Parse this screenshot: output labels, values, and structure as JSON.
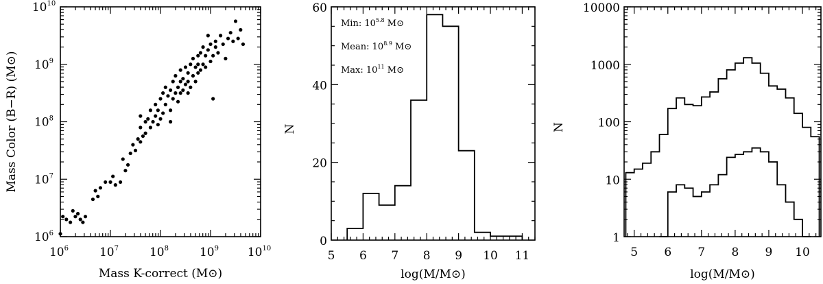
{
  "chart_data": [
    {
      "type": "scatter",
      "xlabel": "Mass K-correct (M⊙)",
      "ylabel": "Mass Color (B−R) (M⊙)",
      "xscale": "log",
      "yscale": "log",
      "xlim": [
        1000000.0,
        10000000000.0
      ],
      "ylim": [
        1000000.0,
        10000000000.0
      ],
      "x_ticks": [
        {
          "value": 1000000.0,
          "base": "10",
          "exp": "6"
        },
        {
          "value": 10000000.0,
          "base": "10",
          "exp": "7"
        },
        {
          "value": 100000000.0,
          "base": "10",
          "exp": "8"
        },
        {
          "value": 1000000000.0,
          "base": "10",
          "exp": "9"
        },
        {
          "value": 10000000000.0,
          "base": "10",
          "exp": "10"
        }
      ],
      "y_ticks": [
        {
          "value": 1000000.0,
          "base": "10",
          "exp": "6"
        },
        {
          "value": 10000000.0,
          "base": "10",
          "exp": "7"
        },
        {
          "value": 100000000.0,
          "base": "10",
          "exp": "8"
        },
        {
          "value": 1000000000.0,
          "base": "10",
          "exp": "9"
        },
        {
          "value": 10000000000.0,
          "base": "10",
          "exp": "10"
        }
      ],
      "points_log10": [
        [
          6.0,
          6.05
        ],
        [
          6.05,
          6.35
        ],
        [
          6.12,
          6.3
        ],
        [
          6.2,
          6.25
        ],
        [
          6.25,
          6.45
        ],
        [
          6.3,
          6.35
        ],
        [
          6.35,
          6.4
        ],
        [
          6.4,
          6.3
        ],
        [
          6.45,
          6.25
        ],
        [
          6.5,
          6.35
        ],
        [
          6.65,
          6.65
        ],
        [
          6.7,
          6.8
        ],
        [
          6.75,
          6.7
        ],
        [
          6.8,
          6.85
        ],
        [
          6.9,
          6.95
        ],
        [
          7.0,
          6.95
        ],
        [
          7.05,
          7.05
        ],
        [
          7.1,
          6.9
        ],
        [
          7.2,
          6.95
        ],
        [
          7.3,
          7.15
        ],
        [
          7.25,
          7.35
        ],
        [
          7.35,
          7.25
        ],
        [
          7.4,
          7.45
        ],
        [
          7.45,
          7.6
        ],
        [
          7.5,
          7.5
        ],
        [
          7.55,
          7.7
        ],
        [
          7.6,
          7.65
        ],
        [
          7.6,
          7.9
        ],
        [
          7.65,
          7.75
        ],
        [
          7.7,
          7.8
        ],
        [
          7.7,
          8.0
        ],
        [
          7.75,
          8.05
        ],
        [
          7.8,
          7.9
        ],
        [
          7.8,
          8.2
        ],
        [
          7.85,
          8.0
        ],
        [
          7.9,
          8.1
        ],
        [
          7.9,
          8.3
        ],
        [
          7.95,
          7.95
        ],
        [
          7.95,
          8.2
        ],
        [
          8.0,
          8.05
        ],
        [
          8.0,
          8.4
        ],
        [
          8.05,
          8.15
        ],
        [
          8.05,
          8.5
        ],
        [
          8.1,
          8.3
        ],
        [
          8.1,
          8.6
        ],
        [
          8.15,
          8.45
        ],
        [
          8.2,
          8.2
        ],
        [
          8.2,
          8.55
        ],
        [
          8.25,
          8.4
        ],
        [
          8.25,
          8.7
        ],
        [
          8.3,
          8.5
        ],
        [
          8.3,
          8.8
        ],
        [
          8.35,
          8.6
        ],
        [
          8.35,
          8.35
        ],
        [
          8.4,
          8.7
        ],
        [
          8.4,
          8.9
        ],
        [
          8.45,
          8.55
        ],
        [
          8.45,
          8.75
        ],
        [
          8.5,
          8.65
        ],
        [
          8.5,
          8.95
        ],
        [
          8.55,
          8.7
        ],
        [
          8.55,
          8.85
        ],
        [
          8.6,
          8.6
        ],
        [
          8.6,
          9.0
        ],
        [
          8.65,
          8.8
        ],
        [
          8.65,
          9.1
        ],
        [
          8.7,
          8.7
        ],
        [
          8.7,
          8.95
        ],
        [
          8.75,
          8.85
        ],
        [
          8.75,
          9.15
        ],
        [
          8.8,
          8.9
        ],
        [
          8.8,
          9.2
        ],
        [
          8.85,
          9.0
        ],
        [
          8.85,
          9.3
        ],
        [
          8.9,
          8.95
        ],
        [
          8.9,
          9.15
        ],
        [
          8.95,
          9.25
        ],
        [
          9.0,
          9.05
        ],
        [
          9.0,
          9.35
        ],
        [
          9.05,
          8.4
        ],
        [
          9.05,
          9.15
        ],
        [
          9.1,
          9.3
        ],
        [
          9.1,
          9.4
        ],
        [
          9.15,
          9.2
        ],
        [
          9.2,
          9.5
        ],
        [
          9.25,
          9.35
        ],
        [
          9.3,
          9.1
        ],
        [
          9.35,
          9.45
        ],
        [
          9.4,
          9.55
        ],
        [
          9.45,
          9.4
        ],
        [
          9.5,
          9.75
        ],
        [
          9.55,
          9.45
        ],
        [
          9.6,
          9.6
        ],
        [
          9.65,
          9.35
        ],
        [
          8.4,
          8.5
        ],
        [
          8.55,
          8.5
        ],
        [
          8.75,
          9.0
        ],
        [
          8.95,
          9.5
        ],
        [
          8.2,
          8.0
        ],
        [
          7.6,
          8.1
        ]
      ]
    },
    {
      "type": "bar",
      "xlabel": "log(M/M⊙)",
      "ylabel": "N",
      "xlim": [
        5,
        11.4
      ],
      "ylim": [
        0,
        60
      ],
      "x_ticks": [
        "5",
        "6",
        "7",
        "8",
        "9",
        "10",
        "11"
      ],
      "y_ticks": [
        "0",
        "20",
        "40",
        "60"
      ],
      "bins": [
        {
          "lo": 5.5,
          "hi": 6.0,
          "n": 3
        },
        {
          "lo": 6.0,
          "hi": 6.5,
          "n": 12
        },
        {
          "lo": 6.5,
          "hi": 7.0,
          "n": 9
        },
        {
          "lo": 7.0,
          "hi": 7.5,
          "n": 14
        },
        {
          "lo": 7.5,
          "hi": 8.0,
          "n": 36
        },
        {
          "lo": 8.0,
          "hi": 8.5,
          "n": 58
        },
        {
          "lo": 8.5,
          "hi": 9.0,
          "n": 55
        },
        {
          "lo": 9.0,
          "hi": 9.5,
          "n": 23
        },
        {
          "lo": 9.5,
          "hi": 10.0,
          "n": 2
        },
        {
          "lo": 10.0,
          "hi": 10.5,
          "n": 1
        },
        {
          "lo": 10.5,
          "hi": 11.0,
          "n": 1
        }
      ],
      "annotations": [
        {
          "prefix": "Min: 10",
          "exp": "5.8",
          "unit": " M⊙"
        },
        {
          "prefix": "Mean: 10",
          "exp": "8.9",
          "unit": " M⊙"
        },
        {
          "prefix": "Max: 10",
          "exp": "11",
          "unit": " M⊙"
        }
      ]
    },
    {
      "type": "line",
      "xlabel": "log(M/M⊙)",
      "ylabel": "N",
      "yscale": "log",
      "xlim": [
        4.7,
        10.55
      ],
      "ylim": [
        1,
        10000
      ],
      "x_ticks": [
        "5",
        "6",
        "7",
        "8",
        "9",
        "10"
      ],
      "y_ticks": [
        "1",
        "10",
        "100",
        "1000",
        "10000"
      ],
      "series": [
        {
          "bins": [
            [
              4.75,
              5.0,
              13
            ],
            [
              5.0,
              5.25,
              15
            ],
            [
              5.25,
              5.5,
              19
            ],
            [
              5.5,
              5.75,
              30
            ],
            [
              5.75,
              6.0,
              60
            ],
            [
              6.0,
              6.25,
              170
            ],
            [
              6.25,
              6.5,
              260
            ],
            [
              6.5,
              6.75,
              200
            ],
            [
              6.75,
              7.0,
              190
            ],
            [
              7.0,
              7.25,
              270
            ],
            [
              7.25,
              7.5,
              330
            ],
            [
              7.5,
              7.75,
              560
            ],
            [
              7.75,
              8.0,
              800
            ],
            [
              8.0,
              8.25,
              1050
            ],
            [
              8.25,
              8.5,
              1300
            ],
            [
              8.5,
              8.75,
              1050
            ],
            [
              8.75,
              9.0,
              700
            ],
            [
              9.0,
              9.25,
              420
            ],
            [
              9.25,
              9.5,
              370
            ],
            [
              9.5,
              9.75,
              260
            ],
            [
              9.75,
              10.0,
              140
            ],
            [
              10.0,
              10.25,
              80
            ],
            [
              10.25,
              10.5,
              55
            ]
          ]
        },
        {
          "bins": [
            [
              5.75,
              6.0,
              1
            ],
            [
              6.0,
              6.25,
              6
            ],
            [
              6.25,
              6.5,
              8
            ],
            [
              6.5,
              6.75,
              7
            ],
            [
              6.75,
              7.0,
              5
            ],
            [
              7.0,
              7.25,
              6
            ],
            [
              7.25,
              7.5,
              8
            ],
            [
              7.5,
              7.75,
              12
            ],
            [
              7.75,
              8.0,
              24
            ],
            [
              8.0,
              8.25,
              27
            ],
            [
              8.25,
              8.5,
              30
            ],
            [
              8.5,
              8.75,
              35
            ],
            [
              8.75,
              9.0,
              30
            ],
            [
              9.0,
              9.25,
              20
            ],
            [
              9.25,
              9.5,
              8
            ],
            [
              9.5,
              9.75,
              4
            ],
            [
              9.75,
              10.0,
              2
            ],
            [
              10.0,
              10.25,
              1
            ]
          ]
        }
      ]
    }
  ]
}
